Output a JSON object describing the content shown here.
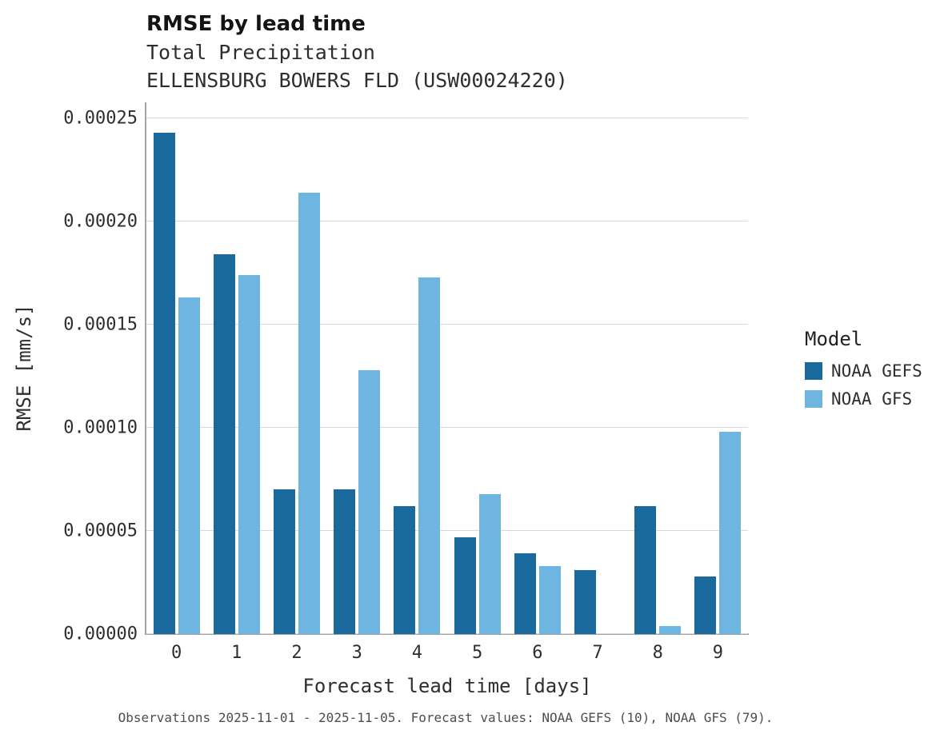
{
  "header": {
    "title": "RMSE by lead time",
    "subtitle1": "Total Precipitation",
    "subtitle2": "ELLENSBURG BOWERS FLD (USW00024220)"
  },
  "caption": "Observations 2025-11-01 - 2025-11-05. Forecast values: NOAA GEFS (10), NOAA GFS (79).",
  "legend": {
    "title": "Model"
  },
  "chart_data": {
    "type": "bar",
    "title": "RMSE by lead time",
    "subtitle": "Total Precipitation — ELLENSBURG BOWERS FLD (USW00024220)",
    "xlabel": "Forecast lead time [days]",
    "ylabel": "RMSE [mm/s]",
    "categories": [
      "0",
      "1",
      "2",
      "3",
      "4",
      "5",
      "6",
      "7",
      "8",
      "9"
    ],
    "series": [
      {
        "name": "NOAA GEFS",
        "color": "#19699c",
        "values": [
          0.000243,
          0.000184,
          7e-05,
          7e-05,
          6.2e-05,
          4.7e-05,
          3.9e-05,
          3.1e-05,
          6.2e-05,
          2.8e-05
        ]
      },
      {
        "name": "NOAA GFS",
        "color": "#6fb5e1",
        "values": [
          0.000163,
          0.000174,
          0.000214,
          0.000128,
          0.000173,
          6.8e-05,
          3.3e-05,
          0.0,
          4e-06,
          9.8e-05
        ]
      }
    ],
    "ylim": [
      0,
      0.00025
    ],
    "yticks": [
      0,
      5e-05,
      0.0001,
      0.00015,
      0.0002,
      0.00025
    ],
    "ytick_labels": [
      "0.00000",
      "0.00005",
      "0.00010",
      "0.00015",
      "0.00020",
      "0.00025"
    ],
    "grid": "horizontal",
    "legend_position": "right",
    "legend_title": "Model"
  }
}
